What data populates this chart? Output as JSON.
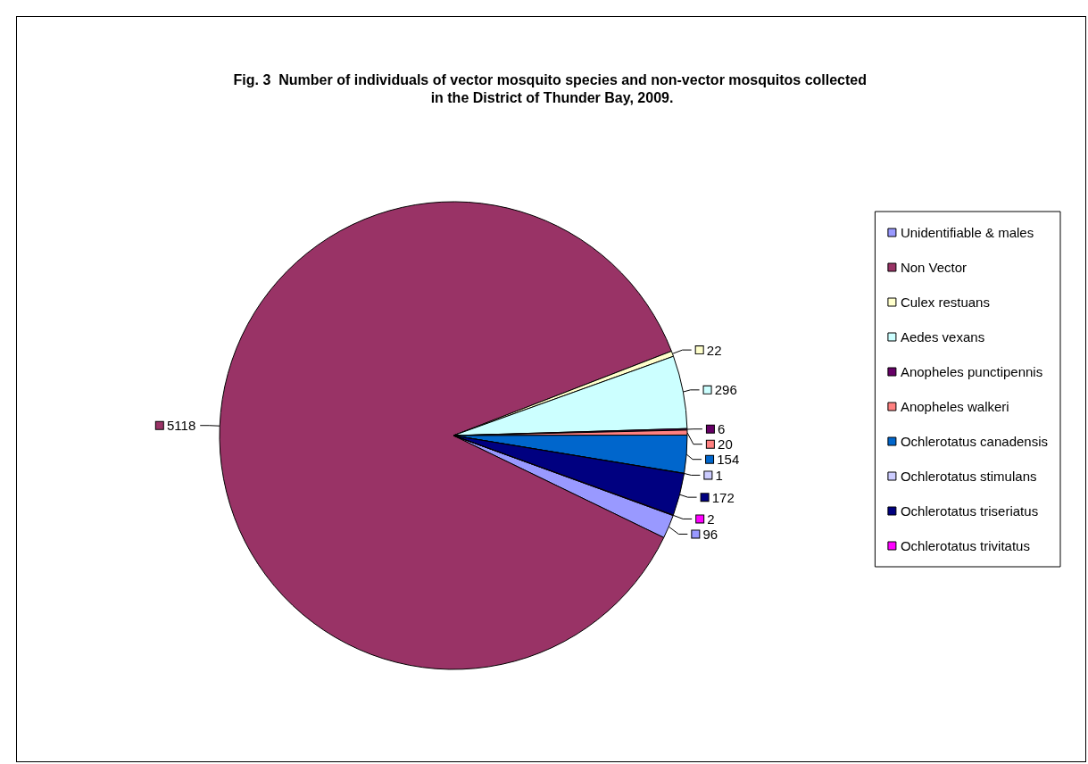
{
  "chart_data": {
    "type": "pie",
    "title": "Fig. 3  Number of individuals of vector mosquito species and non-vector mosquitos collected in the District of Thunder Bay, 2009.",
    "categories": [
      "Unidentifiable & males",
      "Non Vector",
      "Culex restuans",
      "Aedes vexans",
      "Anopheles punctipennis",
      "Anopheles walkeri",
      "Ochlerotatus canadensis",
      "Ochlerotatus stimulans",
      "Ochlerotatus triseriatus",
      "Ochlerotatus trivitatus"
    ],
    "values": [
      96,
      5118,
      22,
      296,
      6,
      20,
      154,
      1,
      172,
      2
    ],
    "colors": [
      "#9999ff",
      "#993366",
      "#ffffcc",
      "#ccffff",
      "#660066",
      "#ff8080",
      "#0066cc",
      "#ccccff",
      "#000080",
      "#ff00ff"
    ],
    "data_labels": true,
    "legend": "right"
  }
}
